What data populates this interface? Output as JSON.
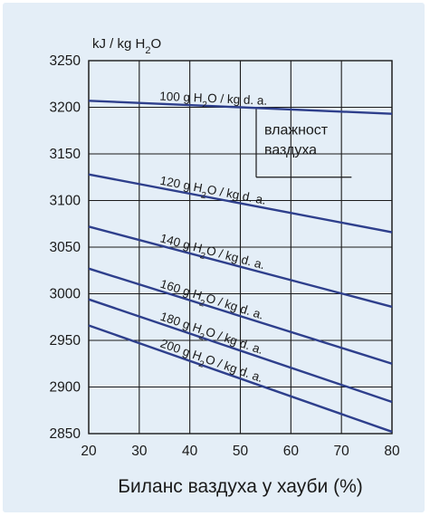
{
  "chart_data": {
    "type": "line",
    "xlabel": "Биланс ваздуха у хауби (%)",
    "ylabel_parts": {
      "pre": "kJ / kg H",
      "sub": "2",
      "post": "O"
    },
    "xlim": [
      20,
      80
    ],
    "ylim": [
      2850,
      3250
    ],
    "xticks": [
      "20",
      "30",
      "40",
      "50",
      "60",
      "70",
      "80"
    ],
    "yticks": [
      "2850",
      "2900",
      "2950",
      "3000",
      "3050",
      "3100",
      "3150",
      "3200",
      "3250"
    ],
    "grid": true,
    "legend_label": [
      "влажност",
      "ваздуха"
    ],
    "series": [
      {
        "name": "100 g H2O / kg d. a.",
        "label": {
          "pre": "100 g H",
          "sub": "2",
          "post": "O / kg d. a."
        },
        "x": [
          20,
          80
        ],
        "y": [
          3207,
          3193
        ]
      },
      {
        "name": "120 g H2O / kg d. a.",
        "label": {
          "pre": "120 g H",
          "sub": "2",
          "post": "O / kg d. a."
        },
        "x": [
          20,
          80
        ],
        "y": [
          3128,
          3066
        ]
      },
      {
        "name": "140 g H2O / kg d. a.",
        "label": {
          "pre": "140 g H",
          "sub": "2",
          "post": "O / kg d. a."
        },
        "x": [
          20,
          80
        ],
        "y": [
          3072,
          2986
        ]
      },
      {
        "name": "160 g H2O / kg d. a.",
        "label": {
          "pre": "160 g H",
          "sub": "2",
          "post": "O / kg d. a."
        },
        "x": [
          20,
          80
        ],
        "y": [
          3027,
          2925
        ]
      },
      {
        "name": "180 g H2O / kg d. a.",
        "label": {
          "pre": "180 g H",
          "sub": "2",
          "post": "O / kg d. a."
        },
        "x": [
          20,
          80
        ],
        "y": [
          2994,
          2884
        ]
      },
      {
        "name": "200 g H2O / kg d. a.",
        "label": {
          "pre": "200 g H",
          "sub": "2",
          "post": "O / kg d. a."
        },
        "x": [
          20,
          80
        ],
        "y": [
          2966,
          2852
        ]
      }
    ],
    "colors": {
      "line": "#2e3f8c",
      "grid": "#1a1a1a",
      "background": "#e4eef7"
    }
  }
}
